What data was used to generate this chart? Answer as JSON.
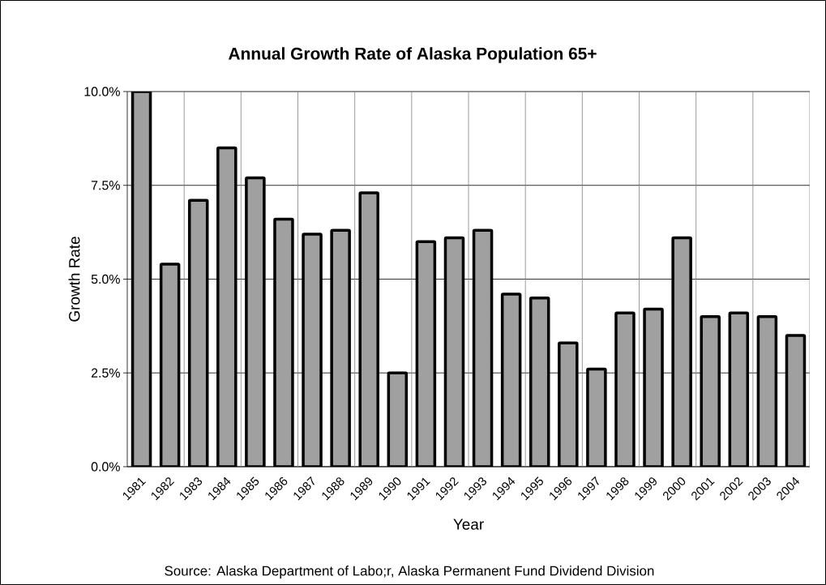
{
  "chart_data": {
    "type": "bar",
    "title": "Annual Growth Rate of Alaska Population 65+",
    "xlabel": "Year",
    "ylabel": "Growth Rate",
    "categories": [
      "1981",
      "1982",
      "1983",
      "1984",
      "1985",
      "1986",
      "1987",
      "1988",
      "1989",
      "1990",
      "1991",
      "1992",
      "1993",
      "1994",
      "1995",
      "1996",
      "1997",
      "1998",
      "1999",
      "2000",
      "2001",
      "2002",
      "2003",
      "2004"
    ],
    "values": [
      10.0,
      5.4,
      7.1,
      8.5,
      7.7,
      6.6,
      6.2,
      6.3,
      7.3,
      2.5,
      6.0,
      6.1,
      6.3,
      4.6,
      4.5,
      3.3,
      2.6,
      4.1,
      4.2,
      6.1,
      4.0,
      4.1,
      4.0,
      3.5
    ],
    "color": "#a0a0a0",
    "ylim": [
      0,
      10
    ],
    "yticks": [
      {
        "value": 0,
        "label": "0.0%"
      },
      {
        "value": 2.5,
        "label": "2.5%"
      },
      {
        "value": 5,
        "label": "5.0%"
      },
      {
        "value": 7.5,
        "label": "7.5%"
      },
      {
        "value": 10,
        "label": "10.0%"
      }
    ],
    "grid": true,
    "annotations": [
      "Source: Alaska Department of Labo;r, Alaska Permanent Fund Dividend Division"
    ]
  }
}
